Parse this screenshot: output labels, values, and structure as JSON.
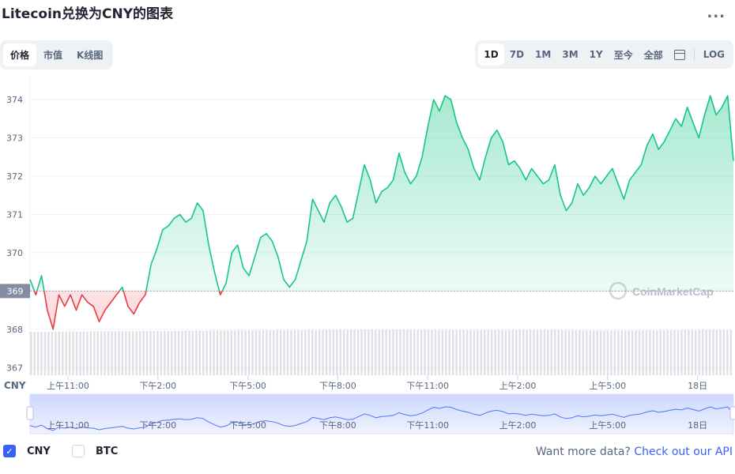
{
  "title": "Litecoin兑换为CNY的图表",
  "more_label": "...",
  "view_tabs": [
    {
      "label": "价格",
      "active": true
    },
    {
      "label": "市值",
      "active": false
    },
    {
      "label": "K线图",
      "active": false
    }
  ],
  "range_tabs": [
    {
      "label": "1D",
      "active": true
    },
    {
      "label": "7D",
      "active": false
    },
    {
      "label": "1M",
      "active": false
    },
    {
      "label": "3M",
      "active": false
    },
    {
      "label": "1Y",
      "active": false
    },
    {
      "label": "至今",
      "active": false
    },
    {
      "label": "全部",
      "active": false
    }
  ],
  "log_label": "LOG",
  "legend": [
    {
      "label": "CNY",
      "checked": true
    },
    {
      "label": "BTC",
      "checked": false
    }
  ],
  "api_text": "Want more data?",
  "api_link": "Check out our API",
  "watermark": "CoinMarketCap",
  "colors": {
    "up": "#16c784",
    "down": "#ea3943",
    "accent": "#3861fb",
    "volume": "#c3c7d0"
  },
  "chart_data": {
    "type": "line",
    "currency_label": "CNY",
    "reference_value": 369,
    "current_label": "369",
    "ylim": [
      366.8,
      374.6
    ],
    "y_ticks": [
      367,
      368,
      369,
      370,
      371,
      372,
      373,
      374
    ],
    "x_ticks": [
      "上午11:00",
      "下午2:00",
      "下午5:00",
      "下午8:00",
      "下午11:00",
      "上午2:00",
      "上午5:00",
      "18日"
    ],
    "grid": true,
    "series": [
      {
        "values": [
          369.3,
          368.9,
          369.4,
          368.5,
          368.0,
          368.9,
          368.6,
          368.9,
          368.5,
          368.9,
          368.7,
          368.6,
          368.2,
          368.5,
          368.7,
          368.9,
          369.1,
          368.6,
          368.4,
          368.7,
          368.9,
          369.7,
          370.1,
          370.6,
          370.7,
          370.9,
          371.0,
          370.8,
          370.9,
          371.3,
          371.1,
          370.2,
          369.5,
          368.9,
          369.2,
          370.0,
          370.2,
          369.6,
          369.4,
          369.9,
          370.4,
          370.5,
          370.3,
          369.9,
          369.3,
          369.1,
          369.3,
          369.8,
          370.3,
          371.4,
          371.1,
          370.8,
          371.3,
          371.5,
          371.2,
          370.8,
          370.9,
          371.6,
          372.3,
          371.9,
          371.3,
          371.6,
          371.7,
          371.9,
          372.6,
          372.1,
          371.8,
          372.0,
          372.5,
          373.3,
          374.0,
          373.7,
          374.1,
          374.0,
          373.4,
          373.0,
          372.7,
          372.2,
          371.9,
          372.5,
          373.0,
          373.2,
          372.9,
          372.3,
          372.4,
          372.2,
          371.9,
          372.2,
          372.0,
          371.8,
          371.9,
          372.3,
          371.5,
          371.1,
          371.3,
          371.8,
          371.5,
          371.7,
          372.0,
          371.8,
          372.0,
          372.2,
          371.8,
          371.4,
          371.9,
          372.1,
          372.3,
          372.8,
          373.1,
          372.7,
          372.9,
          373.2,
          373.5,
          373.3,
          373.8,
          373.4,
          373.0,
          373.6,
          374.1,
          373.6,
          373.8,
          374.1,
          372.4
        ]
      }
    ],
    "volume_relative": [
      0.95,
      0.96,
      0.97,
      0.98,
      0.99,
      1.0,
      1.0,
      0.99,
      1.0,
      0.98,
      0.99,
      1.0
    ]
  }
}
